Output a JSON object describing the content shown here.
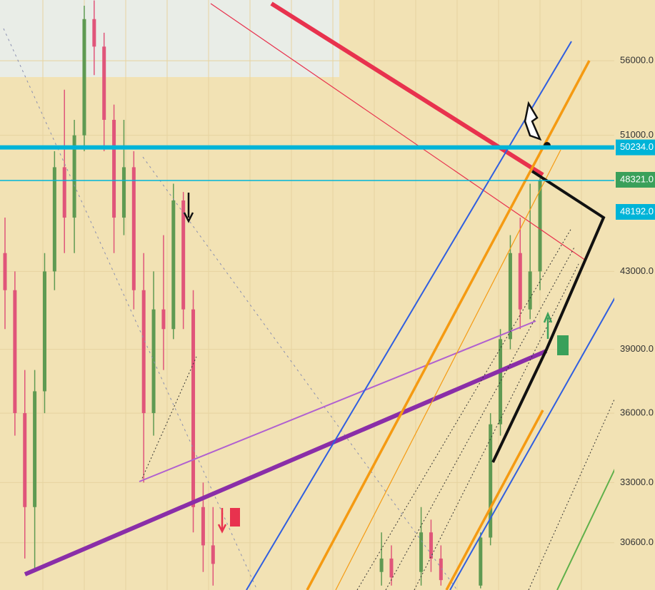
{
  "chart_data": {
    "type": "candlestick",
    "log_scale": true,
    "grid": true,
    "ylim": [
      28840,
      60430
    ],
    "yticks": [
      {
        "value": 56000,
        "label": "56000.0"
      },
      {
        "value": 51000,
        "label": "51000.0"
      },
      {
        "value": 43000,
        "label": "43000.0"
      },
      {
        "value": 39000,
        "label": "39000.0"
      },
      {
        "value": 36000,
        "label": "36000.0"
      },
      {
        "value": 33000,
        "label": "33000.0"
      },
      {
        "value": 30600,
        "label": "30600.0"
      }
    ],
    "price_tags": [
      {
        "value": 50234,
        "label": "50234.0",
        "color": "#00b4d8"
      },
      {
        "value": 48321,
        "label": "48321.0",
        "color": "#3aa05a"
      },
      {
        "value": 48192,
        "label": "48192.0",
        "color": "#00b4d8"
      }
    ],
    "up_color": "#5f9a52",
    "down_color": "#e0557a",
    "open": [
      44000,
      42000,
      36000,
      32000,
      37000,
      43000,
      49000,
      46000,
      51000,
      59000,
      57000,
      52000,
      46000,
      49000,
      42000,
      36000,
      41000,
      40000,
      47000,
      41000,
      32000,
      30500,
      null,
      null,
      null,
      null,
      null,
      null,
      null,
      null,
      null,
      null,
      null,
      null,
      null,
      null,
      null,
      null,
      29500,
      30000,
      null,
      null,
      29500,
      31000,
      30000,
      null,
      null,
      null,
      29000,
      30800,
      35500,
      39500,
      44000,
      41000,
      43000,
      null,
      null,
      null,
      null,
      null,
      null,
      null
    ],
    "high": [
      46000,
      43000,
      38000,
      38000,
      44000,
      50000,
      54000,
      52000,
      60000,
      60400,
      58000,
      53000,
      52000,
      50000,
      44000,
      43000,
      45000,
      48000,
      47500,
      42000,
      33000,
      32000,
      null,
      null,
      null,
      null,
      null,
      null,
      null,
      null,
      null,
      null,
      null,
      null,
      null,
      null,
      null,
      null,
      31000,
      30500,
      null,
      null,
      32000,
      31500,
      30500,
      null,
      null,
      null,
      31000,
      36000,
      40000,
      45000,
      46000,
      48000,
      48321,
      null,
      null,
      null,
      null,
      null,
      null,
      null
    ],
    "low": [
      40000,
      35000,
      30000,
      29500,
      36000,
      42000,
      44000,
      44000,
      50000,
      55000,
      50000,
      44000,
      45000,
      41000,
      33000,
      35000,
      38000,
      39500,
      40000,
      31000,
      29500,
      29000,
      null,
      null,
      null,
      null,
      null,
      null,
      null,
      null,
      null,
      null,
      null,
      null,
      null,
      null,
      null,
      null,
      29000,
      29000,
      null,
      null,
      29000,
      29500,
      29000,
      null,
      null,
      null,
      28900,
      30500,
      35000,
      39000,
      40000,
      40500,
      42000,
      null,
      null,
      null,
      null,
      null,
      null,
      null
    ],
    "close": [
      42000,
      36000,
      32000,
      37000,
      43000,
      49000,
      46000,
      51000,
      59000,
      57000,
      52000,
      46000,
      49000,
      42000,
      36000,
      41000,
      40000,
      47000,
      41000,
      32000,
      30500,
      29800,
      null,
      null,
      null,
      null,
      null,
      null,
      null,
      null,
      null,
      null,
      null,
      null,
      null,
      null,
      null,
      null,
      30000,
      29300,
      null,
      null,
      31000,
      30000,
      29200,
      null,
      null,
      null,
      30800,
      35500,
      39500,
      44000,
      41000,
      43000,
      48192,
      null,
      null,
      null,
      null,
      null,
      null,
      null
    ]
  }
}
